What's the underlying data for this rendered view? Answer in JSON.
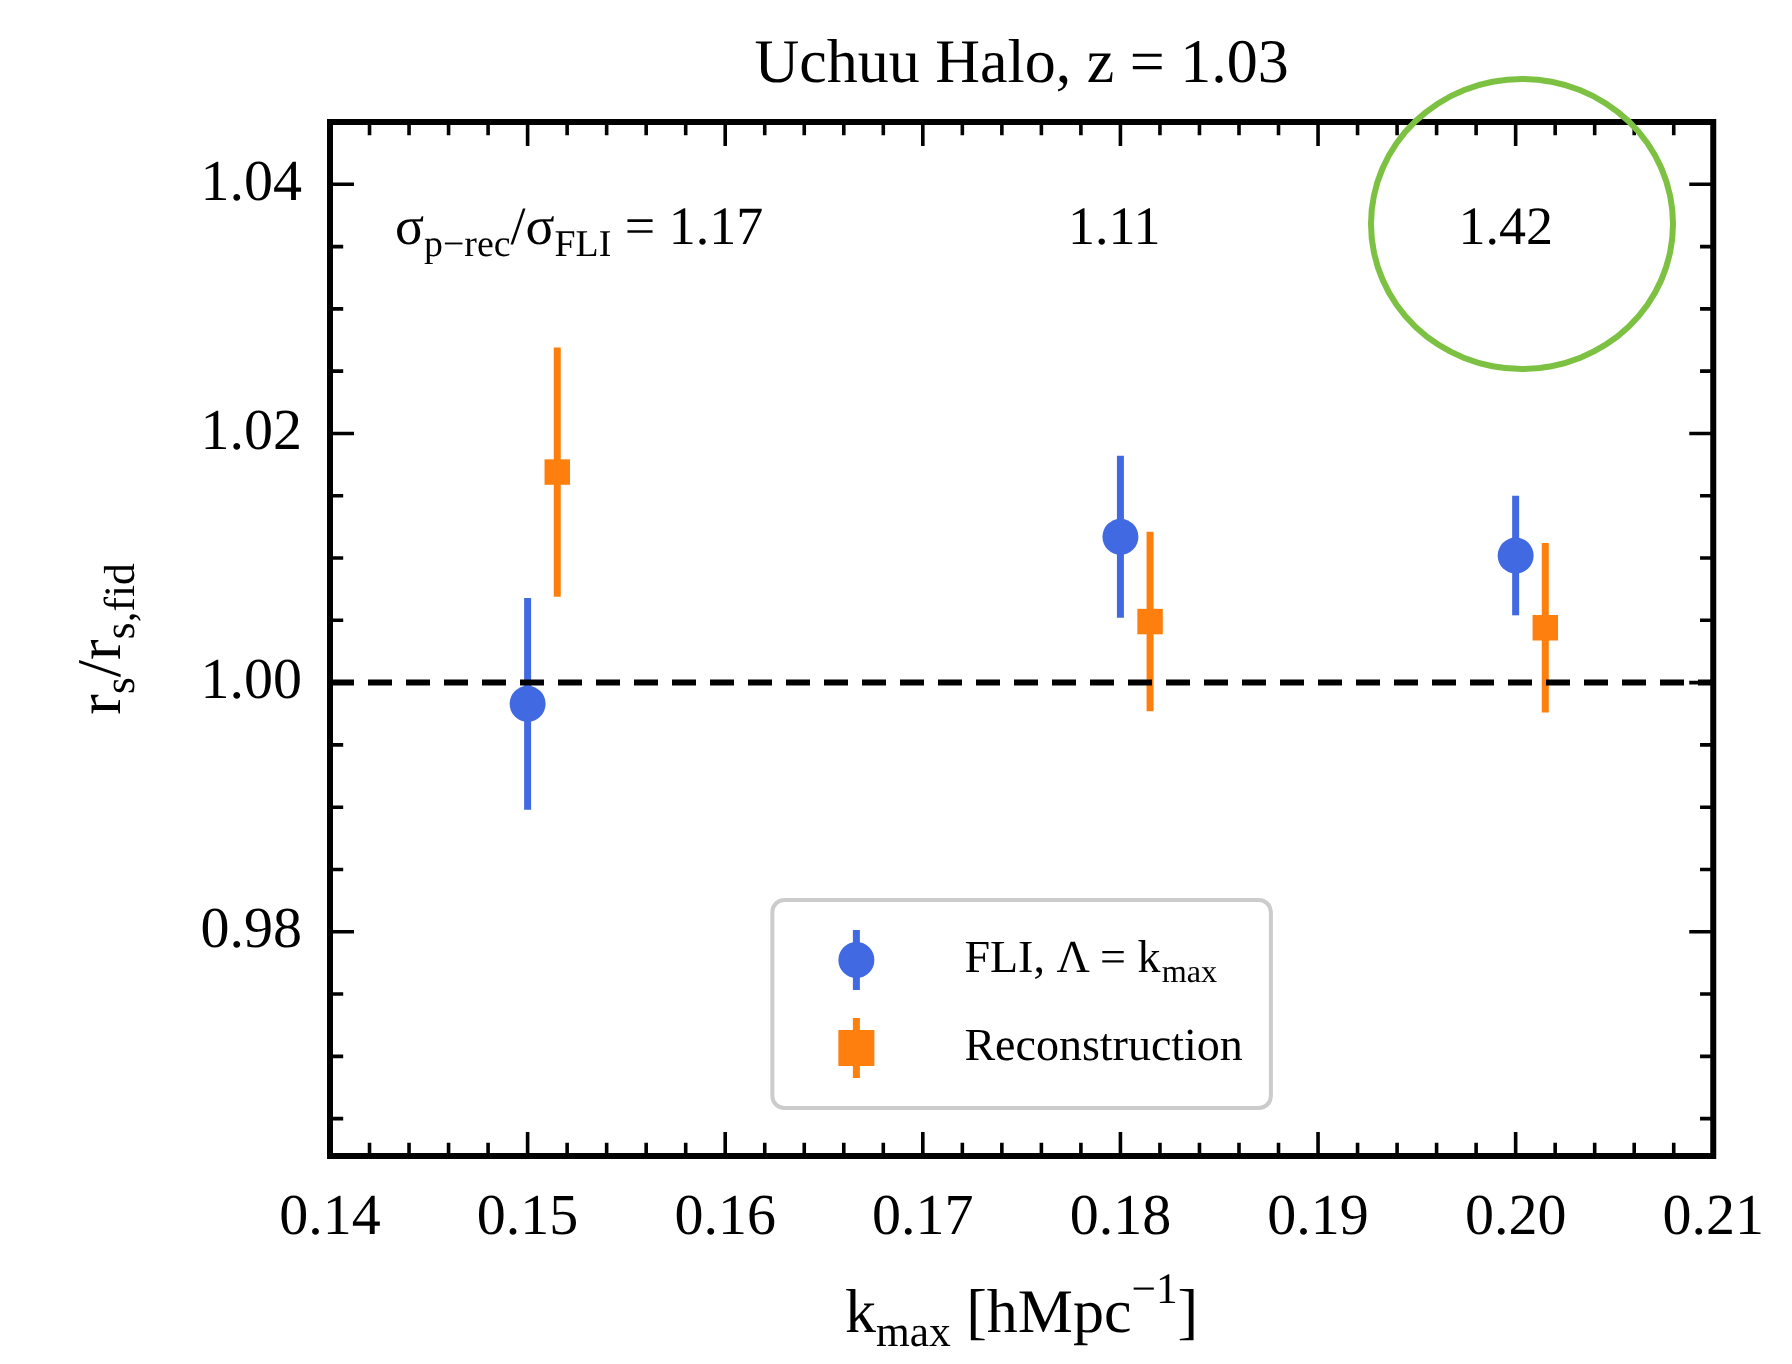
{
  "chart_data": {
    "type": "scatter",
    "title": "Uchuu Halo, z = 1.03",
    "xlabel": "k$_{max}$ [hMpc$^{−1}$]",
    "ylabel": "r$_{s}$/r$_{s,fid}$",
    "series": [
      {
        "name": "FLI, Λ = k$_{max}$",
        "color": "#4169e1",
        "marker": "circle",
        "x": [
          0.15,
          0.18,
          0.2
        ],
        "values": [
          0.9983,
          1.0117,
          1.0102
        ],
        "errors": [
          0.0085,
          0.0065,
          0.0048
        ]
      },
      {
        "name": "Reconstruction",
        "color": "#ff7f0e",
        "marker": "square",
        "x": [
          0.1515,
          0.1815,
          0.2015
        ],
        "values": [
          1.0169,
          1.0049,
          1.0044
        ],
        "errors": [
          0.01,
          0.0072,
          0.0068
        ]
      }
    ],
    "xlim": [
      0.14,
      0.21
    ],
    "xticks": [
      0.14,
      0.15,
      0.16,
      0.17,
      0.18,
      0.19,
      {
        "value": 0.2,
        "label": "0.20"
      },
      0.21
    ],
    "ylim": [
      0.962,
      1.045
    ],
    "yticks": [
      0.98,
      {
        "value": 1,
        "label": "1.00"
      },
      1.02,
      1.04
    ],
    "ref_lines": [
      {
        "axis": "y",
        "value": 1,
        "color": "#000000",
        "line_style": "dashed"
      }
    ],
    "annotations": [
      "σ$_{p−rec}$/σ$_{FLI}$ = 1.17",
      "1.11",
      "1.42"
    ],
    "legend": "bottom"
  }
}
